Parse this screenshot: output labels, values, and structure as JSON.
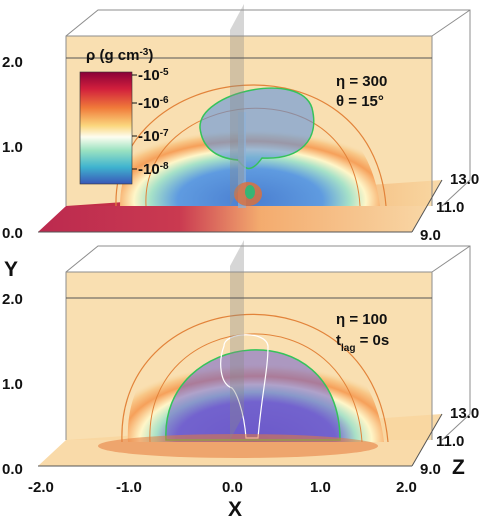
{
  "figure": {
    "axes": {
      "x_label": "X",
      "y_label": "Y",
      "z_label": "Z",
      "x_ticks": [
        "-2.0",
        "-1.0",
        "0.0",
        "1.0",
        "2.0"
      ],
      "y_ticks_top": [
        "2.0",
        "1.0",
        "0.0"
      ],
      "y_ticks_bottom": [
        "2.0",
        "1.0",
        "0.0"
      ],
      "z_ticks_top": [
        "13.0",
        "11.0",
        "9.0"
      ],
      "z_ticks_bottom": [
        "13.0",
        "11.0",
        "9.0"
      ]
    },
    "colorbar": {
      "label_main": "ρ (g cm",
      "label_sup": "-3",
      "label_close": ")",
      "ticks": [
        {
          "base": "10",
          "exp": "-5"
        },
        {
          "base": "10",
          "exp": "-6"
        },
        {
          "base": "10",
          "exp": "-7"
        },
        {
          "base": "10",
          "exp": "-8"
        }
      ],
      "colors": [
        "#8a0038",
        "#d11f3c",
        "#f07a3a",
        "#fbd77e",
        "#fdfdf0",
        "#9be2c1",
        "#3fb3cf",
        "#3a57b8"
      ]
    },
    "panels": [
      {
        "id": "top",
        "eta_text": "η = 300",
        "param_main": "θ = 15°",
        "param_sub": ""
      },
      {
        "id": "bottom",
        "eta_text": "η = 100",
        "param_main": "t",
        "param_sub": "lag",
        "param_tail": " = 0s"
      }
    ]
  }
}
